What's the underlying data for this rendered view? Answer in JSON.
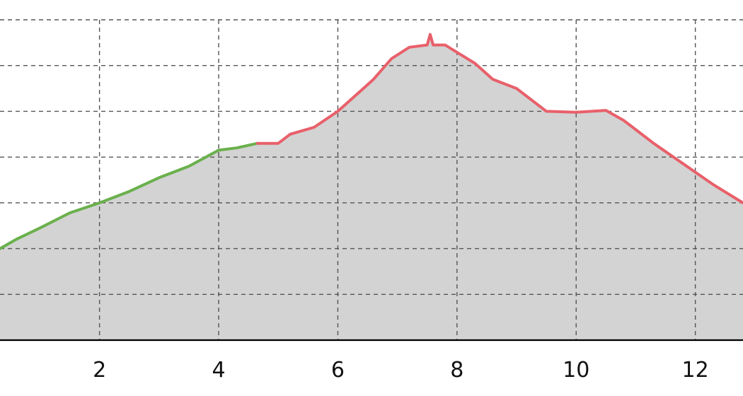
{
  "chart_data": {
    "type": "area",
    "title": "",
    "xlabel": "",
    "ylabel": "",
    "xlim": [
      0.33,
      12.8
    ],
    "ylim": [
      0,
      7.0
    ],
    "x_ticks": [
      2,
      4,
      6,
      8,
      10,
      12
    ],
    "y_gridlines": [
      1,
      2,
      3,
      4,
      5,
      6,
      7
    ],
    "grid": true,
    "fill_color": "#d3d3d3",
    "series": [
      {
        "color": "#6ab04c",
        "points": [
          [
            0.33,
            2.0
          ],
          [
            0.6,
            2.2
          ],
          [
            1.0,
            2.45
          ],
          [
            1.5,
            2.78
          ],
          [
            2.0,
            3.0
          ],
          [
            2.5,
            3.25
          ],
          [
            3.0,
            3.55
          ],
          [
            3.5,
            3.8
          ],
          [
            4.0,
            4.15
          ],
          [
            4.3,
            4.2
          ],
          [
            4.65,
            4.3
          ]
        ]
      },
      {
        "color": "#e8606a",
        "points": [
          [
            4.65,
            4.3
          ],
          [
            5.0,
            4.3
          ],
          [
            5.2,
            4.5
          ],
          [
            5.6,
            4.65
          ],
          [
            6.0,
            5.0
          ],
          [
            6.3,
            5.35
          ],
          [
            6.6,
            5.7
          ],
          [
            6.9,
            6.15
          ],
          [
            7.2,
            6.4
          ],
          [
            7.5,
            6.45
          ],
          [
            7.55,
            6.68
          ],
          [
            7.6,
            6.45
          ],
          [
            7.8,
            6.45
          ],
          [
            8.3,
            6.05
          ],
          [
            8.6,
            5.7
          ],
          [
            9.0,
            5.5
          ],
          [
            9.5,
            5.0
          ],
          [
            10.0,
            4.98
          ],
          [
            10.5,
            5.02
          ],
          [
            10.8,
            4.8
          ],
          [
            11.3,
            4.3
          ],
          [
            11.8,
            3.85
          ],
          [
            12.3,
            3.4
          ],
          [
            12.8,
            3.0
          ]
        ]
      }
    ]
  }
}
